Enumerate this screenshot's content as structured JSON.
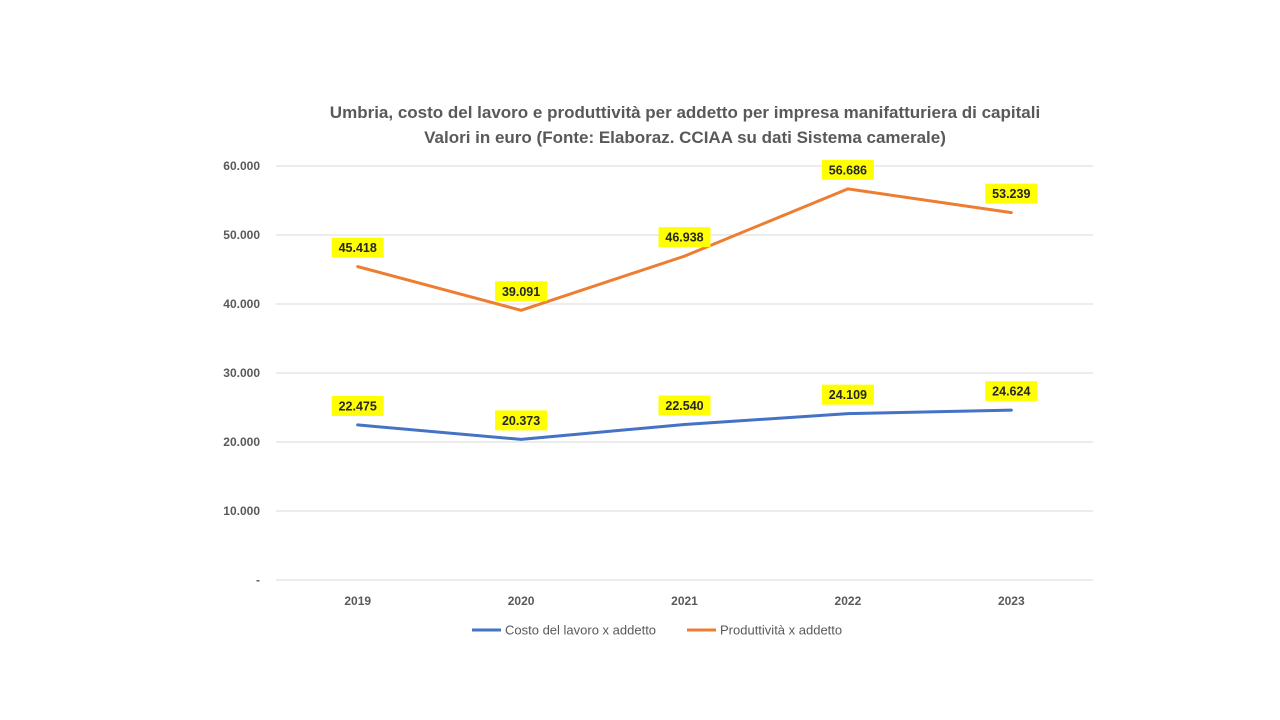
{
  "chart_data": {
    "type": "line",
    "title": "Umbria, costo del lavoro e produttività per addetto per impresa manifatturiera di capitali",
    "subtitle": "Valori in euro (Fonte: Elaboraz. CCIAA su dati Sistema camerale)",
    "xlabel": "",
    "ylabel": "",
    "categories": [
      "2019",
      "2020",
      "2021",
      "2022",
      "2023"
    ],
    "ylim": [
      0,
      60000
    ],
    "yticks": [
      0,
      10000,
      20000,
      30000,
      40000,
      50000,
      60000
    ],
    "ytick_labels": [
      "-",
      "10.000",
      "20.000",
      "30.000",
      "40.000",
      "50.000",
      "60.000"
    ],
    "grid": true,
    "legend_position": "bottom",
    "series": [
      {
        "name": "Costo del lavoro x addetto",
        "color": "#4472C4",
        "values": [
          22475,
          20373,
          22540,
          24109,
          24624
        ],
        "labels": [
          "22.475",
          "20.373",
          "22.540",
          "24.109",
          "24.624"
        ]
      },
      {
        "name": "Produttività x addetto",
        "color": "#ED7D31",
        "values": [
          45418,
          39091,
          46938,
          56686,
          53239
        ],
        "labels": [
          "45.418",
          "39.091",
          "46.938",
          "56.686",
          "53.239"
        ]
      }
    ],
    "data_label_background": "#FFFF00"
  }
}
